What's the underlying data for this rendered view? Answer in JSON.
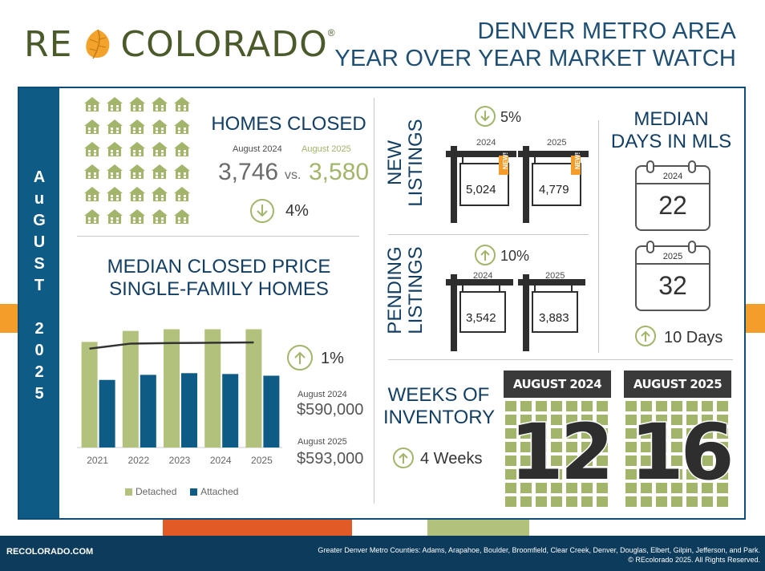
{
  "header": {
    "logo_re": "RE",
    "logo_colorado": "COLORADO",
    "logo_reg": "®",
    "title_line1": "DENVER METRO AREA",
    "title_line2": "YEAR OVER YEAR MARKET WATCH"
  },
  "sidebar": {
    "letters": [
      "A",
      "u",
      "G",
      "U",
      "S",
      "T",
      "",
      "2",
      "0",
      "2",
      "5"
    ]
  },
  "homes_closed": {
    "title": "HOMES CLOSED",
    "label_2024": "August 2024",
    "label_2025": "August 2025",
    "value_2024": "3,746",
    "vs": "vs.",
    "value_2025": "3,580",
    "change": "4%",
    "direction": "down"
  },
  "new_listings": {
    "title_line1": "NEW",
    "title_line2": "LISTINGS",
    "change": "5%",
    "direction": "down",
    "year_2024": "2024",
    "year_2025": "2025",
    "value_2024": "5,024",
    "value_2025": "4,779",
    "badge": "NEW!"
  },
  "pending_listings": {
    "title_line1": "PENDING",
    "title_line2": "LISTINGS",
    "change": "10%",
    "direction": "up",
    "year_2024": "2024",
    "year_2025": "2025",
    "value_2024": "3,542",
    "value_2025": "3,883"
  },
  "days_in_mls": {
    "title_line1": "MEDIAN",
    "title_line2": "DAYS IN MLS",
    "year_2024": "2024",
    "value_2024": "22",
    "year_2025": "2025",
    "value_2025": "32",
    "change": "10 Days",
    "direction": "up"
  },
  "median_price": {
    "title_line1": "MEDIAN CLOSED PRICE",
    "title_line2": "SINGLE-FAMILY HOMES",
    "change": "1%",
    "direction": "up",
    "label_2024": "August 2024",
    "value_2024": "$590,000",
    "label_2025": "August 2025",
    "value_2025": "$593,000"
  },
  "weeks_inventory": {
    "title_line1": "WEEKS OF",
    "title_line2": "INVENTORY",
    "change": "4 Weeks",
    "direction": "up",
    "header_2024": "AUGUST 2024",
    "header_2025": "AUGUST 2025",
    "value_2024": "12",
    "value_2025": "16"
  },
  "chart_data": {
    "type": "bar",
    "categories": [
      "2021",
      "2022",
      "2023",
      "2024",
      "2025"
    ],
    "series": [
      {
        "name": "Detached",
        "values": [
          625000,
          690000,
          700000,
          700000,
          700000
        ],
        "color": "#b2c17c"
      },
      {
        "name": "Attached",
        "values": [
          400000,
          430000,
          440000,
          435000,
          425000
        ],
        "color": "#0e5b86"
      },
      {
        "name": "",
        "type": "line",
        "values": [
          585000,
          615000,
          618000,
          620000,
          622000
        ],
        "color": "#333333"
      }
    ],
    "ylim": [
      0,
      750000
    ],
    "grid": false,
    "legend": "bottom"
  },
  "footer": {
    "url": "RECOLORADO.COM",
    "counties": "Greater Denver Metro Counties: Adams, Arapahoe, Boulder, Broomfield, Clear Creek, Denver, Douglas, Elbert, Gilpin, Jefferson, and Park.",
    "copyright": "© REcolorado 2025. All Rights Reserved."
  },
  "colors": {
    "navy": "#0e5b86",
    "green": "#a2b56a",
    "orange": "#f49d2a",
    "red": "#e25a26"
  }
}
